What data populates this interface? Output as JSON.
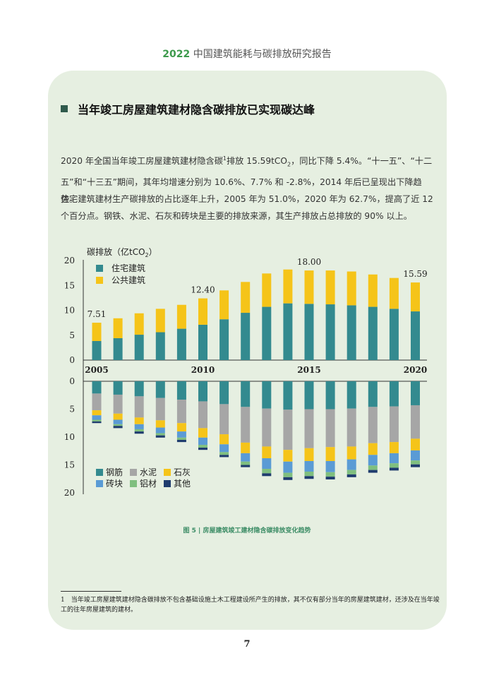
{
  "header": {
    "year": "2022",
    "title": " 中国建筑能耗与碳排放研究报告"
  },
  "section_title": "当年竣工房屋建筑建材隐含碳排放已实现碳达峰",
  "para1": {
    "a": "2020 年全国当年竣工房屋建筑建材隐含碳",
    "sup": "1",
    "b": "排放 15.59tCO",
    "sub": "2",
    "c": "，同比下降 5.4%。“十一五”、“十二五”和“十三五”期间，其年均增速分别为 10.6%、7.7% 和 -2.8%，2014 年后已呈现出下降趋势。"
  },
  "para2": "住宅建筑建材生产碳排放的占比逐年上升，2005 年为 51.0%，2020 年为 62.7%，提高了近 12 个百分点。钢铁、水泥、石灰和砖块是主要的排放来源，其生产排放占总排放的 90% 以上。",
  "figure_caption": "图 5 | 房屋建筑竣工建材隐含碳排放变化趋势",
  "footnote": "1　当年竣工房屋建筑建材隐含碳排放不包含基础设施土木工程建设所产生的排放，其不仅有部分当年的房屋建筑建材，还涉及在当年竣工的往年房屋建筑的建材。",
  "page_number": "7",
  "chart_data": [
    {
      "type": "bar",
      "stacked": true,
      "ylabel_main": "碳排放（亿tCO",
      "ylabel_sub": "2",
      "ylabel_tail": "）",
      "ylim": [
        0,
        20
      ],
      "yticks": [
        "0",
        "5",
        "10",
        "15",
        "20"
      ],
      "categories": [
        "2005",
        "2006",
        "2007",
        "2008",
        "2009",
        "2010",
        "2011",
        "2012",
        "2013",
        "2014",
        "2015",
        "2016",
        "2017",
        "2018",
        "2019",
        "2020"
      ],
      "xtick_labels": [
        "2005",
        "2010",
        "2015",
        "2020"
      ],
      "series": [
        {
          "name": "住宅建筑",
          "color": "#338a8f",
          "values": [
            3.83,
            4.4,
            5.1,
            5.6,
            6.3,
            7.1,
            8.2,
            9.5,
            10.7,
            11.4,
            11.3,
            11.2,
            11.0,
            10.7,
            10.3,
            9.78
          ]
        },
        {
          "name": "公共建筑",
          "color": "#f5c419",
          "values": [
            3.68,
            4.0,
            4.3,
            4.7,
            4.8,
            5.3,
            5.8,
            6.2,
            6.7,
            6.8,
            6.7,
            6.8,
            6.8,
            6.5,
            6.2,
            5.81
          ]
        }
      ],
      "annotations": [
        {
          "category": "2005",
          "label": "7.51"
        },
        {
          "category": "2010",
          "label": "12.40"
        },
        {
          "category": "2015",
          "label": "18.00"
        },
        {
          "category": "2020",
          "label": "15.59"
        }
      ]
    },
    {
      "type": "bar",
      "stacked": true,
      "inverted": true,
      "ylim": [
        0,
        20
      ],
      "yticks": [
        "0",
        "5",
        "10",
        "15",
        "20"
      ],
      "categories": [
        "2005",
        "2006",
        "2007",
        "2008",
        "2009",
        "2010",
        "2011",
        "2012",
        "2013",
        "2014",
        "2015",
        "2016",
        "2017",
        "2018",
        "2019",
        "2020"
      ],
      "series": [
        {
          "name": "钢筋",
          "color": "#338a8f",
          "values": [
            2.2,
            2.4,
            2.7,
            3.0,
            3.3,
            3.6,
            4.1,
            4.6,
            4.9,
            5.1,
            5.0,
            5.0,
            4.9,
            4.6,
            4.5,
            4.3
          ]
        },
        {
          "name": "水泥",
          "color": "#a6a6a6",
          "values": [
            3.0,
            3.4,
            3.8,
            4.0,
            4.2,
            4.8,
            5.4,
            6.4,
            6.8,
            7.2,
            7.0,
            6.8,
            6.8,
            6.5,
            6.4,
            6.0
          ]
        },
        {
          "name": "石灰",
          "color": "#f5c419",
          "values": [
            0.9,
            1.1,
            1.2,
            1.3,
            1.5,
            1.7,
            1.8,
            1.9,
            2.1,
            2.1,
            2.3,
            2.5,
            2.3,
            2.1,
            2.0,
            2.1
          ]
        },
        {
          "name": "砖块",
          "color": "#5a9bd5",
          "values": [
            0.8,
            0.8,
            0.9,
            1.0,
            1.1,
            1.3,
            1.4,
            1.5,
            1.9,
            2.0,
            1.9,
            2.0,
            1.9,
            1.9,
            1.8,
            1.8
          ]
        },
        {
          "name": "铝材",
          "color": "#7fbf7f",
          "values": [
            0.3,
            0.3,
            0.4,
            0.4,
            0.4,
            0.5,
            0.5,
            0.6,
            0.8,
            0.8,
            0.8,
            0.8,
            0.8,
            0.8,
            0.8,
            0.7
          ]
        },
        {
          "name": "其他",
          "color": "#1f3c6e",
          "values": [
            0.3,
            0.4,
            0.4,
            0.4,
            0.4,
            0.4,
            0.4,
            0.4,
            0.5,
            0.5,
            0.5,
            0.5,
            0.5,
            0.5,
            0.5,
            0.5
          ]
        }
      ]
    }
  ]
}
